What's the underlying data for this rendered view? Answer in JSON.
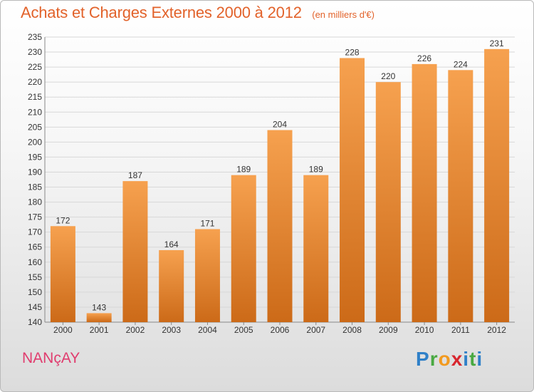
{
  "header": {
    "title": "Achats et Charges Externes 2000 à 2012",
    "subtitle": "(en milliers d'€)"
  },
  "footer": {
    "commune": "NANçAY",
    "brand_letters": [
      "P",
      "r",
      "o",
      "x",
      "i",
      "t",
      "i"
    ]
  },
  "colors": {
    "bar_light": "#f6a14f",
    "bar_dark": "#cc6a18",
    "title": "#e2622a",
    "commune": "#e03c6e",
    "grid": "#d8d8d8"
  },
  "chart_data": {
    "type": "bar",
    "title": "Achats et Charges Externes 2000 à 2012",
    "subtitle": "(en milliers d'€)",
    "xlabel": "",
    "ylabel": "",
    "categories": [
      "2000",
      "2001",
      "2002",
      "2003",
      "2004",
      "2005",
      "2006",
      "2007",
      "2008",
      "2009",
      "2010",
      "2011",
      "2012"
    ],
    "values": [
      172,
      143,
      187,
      164,
      171,
      189,
      204,
      189,
      228,
      220,
      226,
      224,
      231
    ],
    "ylim": [
      140,
      235
    ],
    "ytick_step": 5,
    "grid": true,
    "legend": "none"
  }
}
